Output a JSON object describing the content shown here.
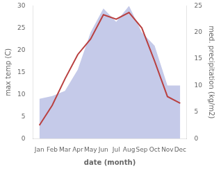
{
  "chart_data": {
    "type": "line",
    "xlabel": "date (month)",
    "ylabel": "max temp (C)",
    "y2label": "med. precipitation (kg/m2)",
    "categories": [
      "Jan",
      "Feb",
      "Mar",
      "Apr",
      "May",
      "Jun",
      "Jul",
      "Aug",
      "Sep",
      "Oct",
      "Nov",
      "Dec"
    ],
    "series": [
      {
        "type": "area",
        "color": "#c5cae9",
        "axis": "y2",
        "values": [
          7.5,
          8.0,
          9.0,
          13.0,
          20.0,
          24.5,
          22.0,
          25.0,
          20.0,
          17.5,
          10.0,
          10.0
        ]
      },
      {
        "type": "line",
        "color": "#b94040",
        "values": [
          3.0,
          7.5,
          13.5,
          19.0,
          22.5,
          28.0,
          27.0,
          28.5,
          25.0,
          17.5,
          9.5,
          8.0
        ]
      }
    ],
    "ylim": [
      0,
      30
    ],
    "yticks": [
      0,
      5,
      10,
      15,
      20,
      25,
      30
    ],
    "y2lim": [
      0,
      25
    ],
    "y2ticks": [
      0,
      5,
      10,
      15,
      20,
      25
    ],
    "grid": false
  }
}
